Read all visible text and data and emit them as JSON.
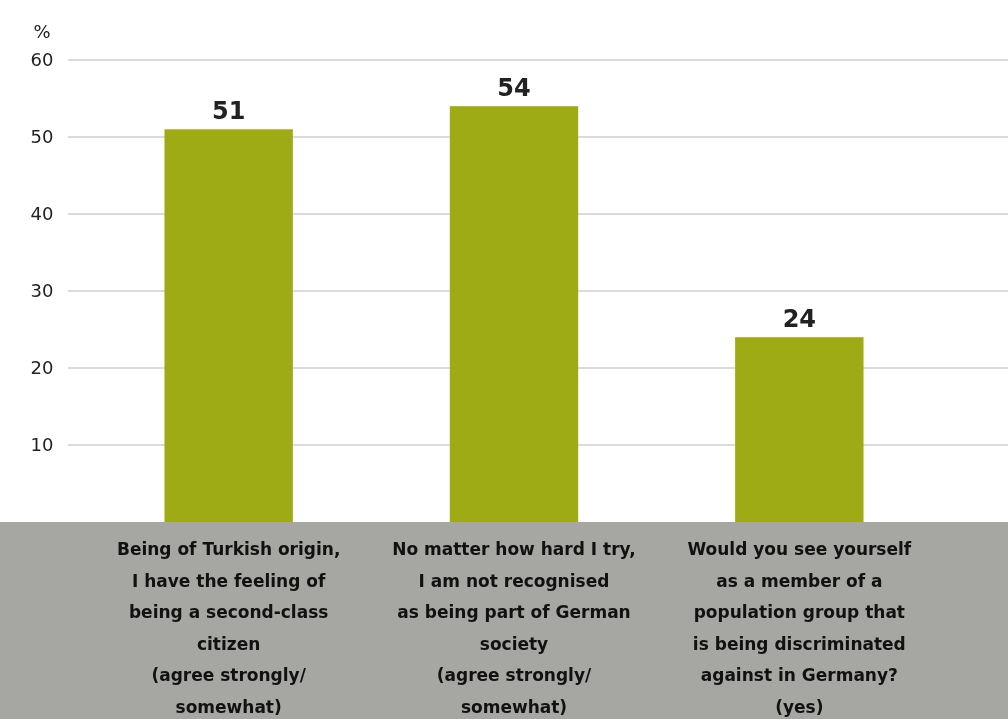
{
  "chart_data": {
    "type": "bar",
    "ylabel": "%",
    "categories": [
      "Being of Turkish origin,\nI have the feeling of\nbeing a second-class\ncitizen\n(agree strongly/\nsomewhat)",
      "No matter how hard I try,\nI am not recognised\nas being part of German\nsociety\n(agree strongly/\nsomewhat)",
      "Would you see yourself\nas a member of a\npopulation group that\nis being discriminated\nagainst in Germany?\n(yes)"
    ],
    "values": [
      51,
      54,
      24
    ],
    "color": "#9eab14",
    "ylim": [
      0,
      60
    ],
    "yticks": [
      10,
      20,
      30,
      40,
      50,
      60
    ],
    "grid": "y",
    "data_labels": true
  }
}
